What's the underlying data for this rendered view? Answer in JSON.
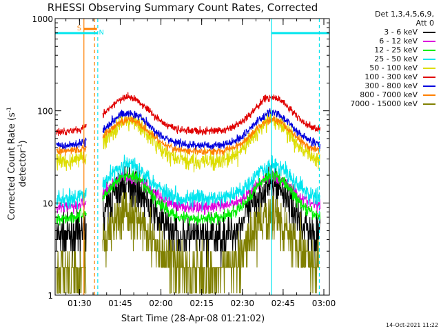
{
  "title": "RHESSI Observing Summary Count Rates, Corrected",
  "ylabel_main": "Corrected Count Rate (s",
  "ylabel_sup1": "-1",
  "ylabel_mid": " detector",
  "ylabel_sup2": "-1",
  "ylabel_end": ")",
  "xlabel": "Start Time (28-Apr-08 01:21:02)",
  "timestamp": "14-Oct-2021 11:22",
  "legend": {
    "header1": "Det 1,3,4,5,6,9,",
    "header2": "Att 0",
    "position": "top-right",
    "entries": [
      {
        "label": "3 - 6 keV",
        "color": "#000000"
      },
      {
        "label": "6 - 12 keV",
        "color": "#dd00dd"
      },
      {
        "label": "12 - 25 keV",
        "color": "#00ee00"
      },
      {
        "label": "25 - 50 keV",
        "color": "#00e5ee"
      },
      {
        "label": "50 - 100 keV",
        "color": "#dddd00"
      },
      {
        "label": "100 - 300 keV",
        "color": "#e00000"
      },
      {
        "label": "300 - 800 keV",
        "color": "#0000dd"
      },
      {
        "label": "800 - 7000 keV",
        "color": "#ff8000"
      },
      {
        "label": "7000 - 15000 keV",
        "color": "#808000"
      }
    ]
  },
  "flags": {
    "saa_label": "S",
    "saa_color": "#ff8000",
    "night_label": "N",
    "night_color": "#00e5ee"
  },
  "chart_data": {
    "type": "line",
    "x_unit": "minutes after 01:21:02",
    "xlim": [
      0,
      101
    ],
    "ylim": [
      1,
      1000
    ],
    "yscale": "log",
    "y_ticks": [
      {
        "value": 1,
        "label": "1"
      },
      {
        "value": 10,
        "label": "10"
      },
      {
        "value": 100,
        "label": "100"
      },
      {
        "value": 1000,
        "label": "1000"
      }
    ],
    "x_ticks": [
      {
        "value": 8.97,
        "label": "01:30"
      },
      {
        "value": 23.97,
        "label": "01:45"
      },
      {
        "value": 38.97,
        "label": "02:00"
      },
      {
        "value": 53.97,
        "label": "02:15"
      },
      {
        "value": 68.97,
        "label": "02:30"
      },
      {
        "value": 83.97,
        "label": "02:45"
      },
      {
        "value": 98.97,
        "label": "03:00"
      }
    ],
    "gaps": [
      [
        11.5,
        17.5
      ]
    ],
    "flag_segments": {
      "night": [
        [
          0,
          15.6
        ],
        [
          79.7,
          101
        ]
      ],
      "saa": [
        [
          10.6,
          15.4
        ]
      ]
    },
    "boundaries": [
      {
        "x": 10.6,
        "style": "solid",
        "color": "#ff8000"
      },
      {
        "x": 14.5,
        "style": "dashed",
        "color": "#ff8000"
      },
      {
        "x": 15.7,
        "style": "dashed",
        "color": "#00e5ee"
      },
      {
        "x": 79.7,
        "style": "solid",
        "color": "#00e5ee"
      },
      {
        "x": 97.3,
        "style": "dashed",
        "color": "#00e5ee"
      }
    ],
    "series": [
      {
        "name": "3 - 6 keV",
        "color": "#000000",
        "base": 4.2,
        "peak": 16,
        "noise": 0.16,
        "step": true
      },
      {
        "name": "6 - 12 keV",
        "color": "#dd00dd",
        "base": 9,
        "peak": 19,
        "noise": 0.05
      },
      {
        "name": "12 - 25 keV",
        "color": "#00ee00",
        "base": 6.8,
        "peak": 20,
        "noise": 0.05
      },
      {
        "name": "25 - 50 keV",
        "color": "#00e5ee",
        "base": 11,
        "peak": 26,
        "noise": 0.07
      },
      {
        "name": "50 - 100 keV",
        "color": "#dddd00",
        "base": 28,
        "peak": 78,
        "noise": 0.07
      },
      {
        "name": "100 - 300 keV",
        "color": "#e00000",
        "base": 60,
        "peak": 140,
        "noise": 0.03
      },
      {
        "name": "300 - 800 keV",
        "color": "#0000dd",
        "base": 42,
        "peak": 95,
        "noise": 0.035
      },
      {
        "name": "800 - 7000 keV",
        "color": "#ff8000",
        "base": 36,
        "peak": 80,
        "noise": 0.03
      },
      {
        "name": "7000 - 15000 keV",
        "color": "#808000",
        "base": 1.8,
        "peak": 7.5,
        "noise": 0.2,
        "step": true
      }
    ],
    "peaks_x": [
      27,
      80
    ]
  }
}
